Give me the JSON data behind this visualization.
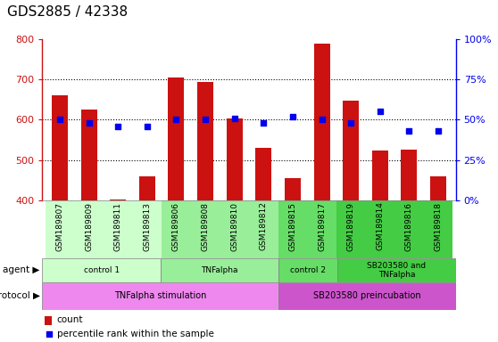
{
  "title": "GDS2885 / 42338",
  "samples": [
    "GSM189807",
    "GSM189809",
    "GSM189811",
    "GSM189813",
    "GSM189806",
    "GSM189808",
    "GSM189810",
    "GSM189812",
    "GSM189815",
    "GSM189817",
    "GSM189819",
    "GSM189814",
    "GSM189816",
    "GSM189818"
  ],
  "counts": [
    660,
    625,
    402,
    460,
    705,
    693,
    603,
    530,
    455,
    790,
    648,
    523,
    525,
    460
  ],
  "percentile_ranks": [
    50,
    48,
    46,
    46,
    50,
    50,
    51,
    48,
    52,
    50,
    48,
    55,
    43,
    43
  ],
  "ymin": 400,
  "ymax": 800,
  "yticks": [
    400,
    500,
    600,
    700,
    800
  ],
  "y2min": 0,
  "y2max": 100,
  "y2ticks": [
    0,
    25,
    50,
    75,
    100
  ],
  "bar_color": "#cc1111",
  "dot_color": "#0000ee",
  "agent_groups": [
    {
      "label": "control 1",
      "start": 0,
      "end": 4,
      "color": "#ccffcc"
    },
    {
      "label": "TNFalpha",
      "start": 4,
      "end": 8,
      "color": "#99ee99"
    },
    {
      "label": "control 2",
      "start": 8,
      "end": 10,
      "color": "#66dd66"
    },
    {
      "label": "SB203580 and\nTNFalpha",
      "start": 10,
      "end": 14,
      "color": "#44cc44"
    }
  ],
  "protocol_groups": [
    {
      "label": "TNFalpha stimulation",
      "start": 0,
      "end": 8,
      "color": "#ee88ee"
    },
    {
      "label": "SB203580 preincubation",
      "start": 8,
      "end": 14,
      "color": "#cc55cc"
    }
  ],
  "bg_color": "#ffffff"
}
